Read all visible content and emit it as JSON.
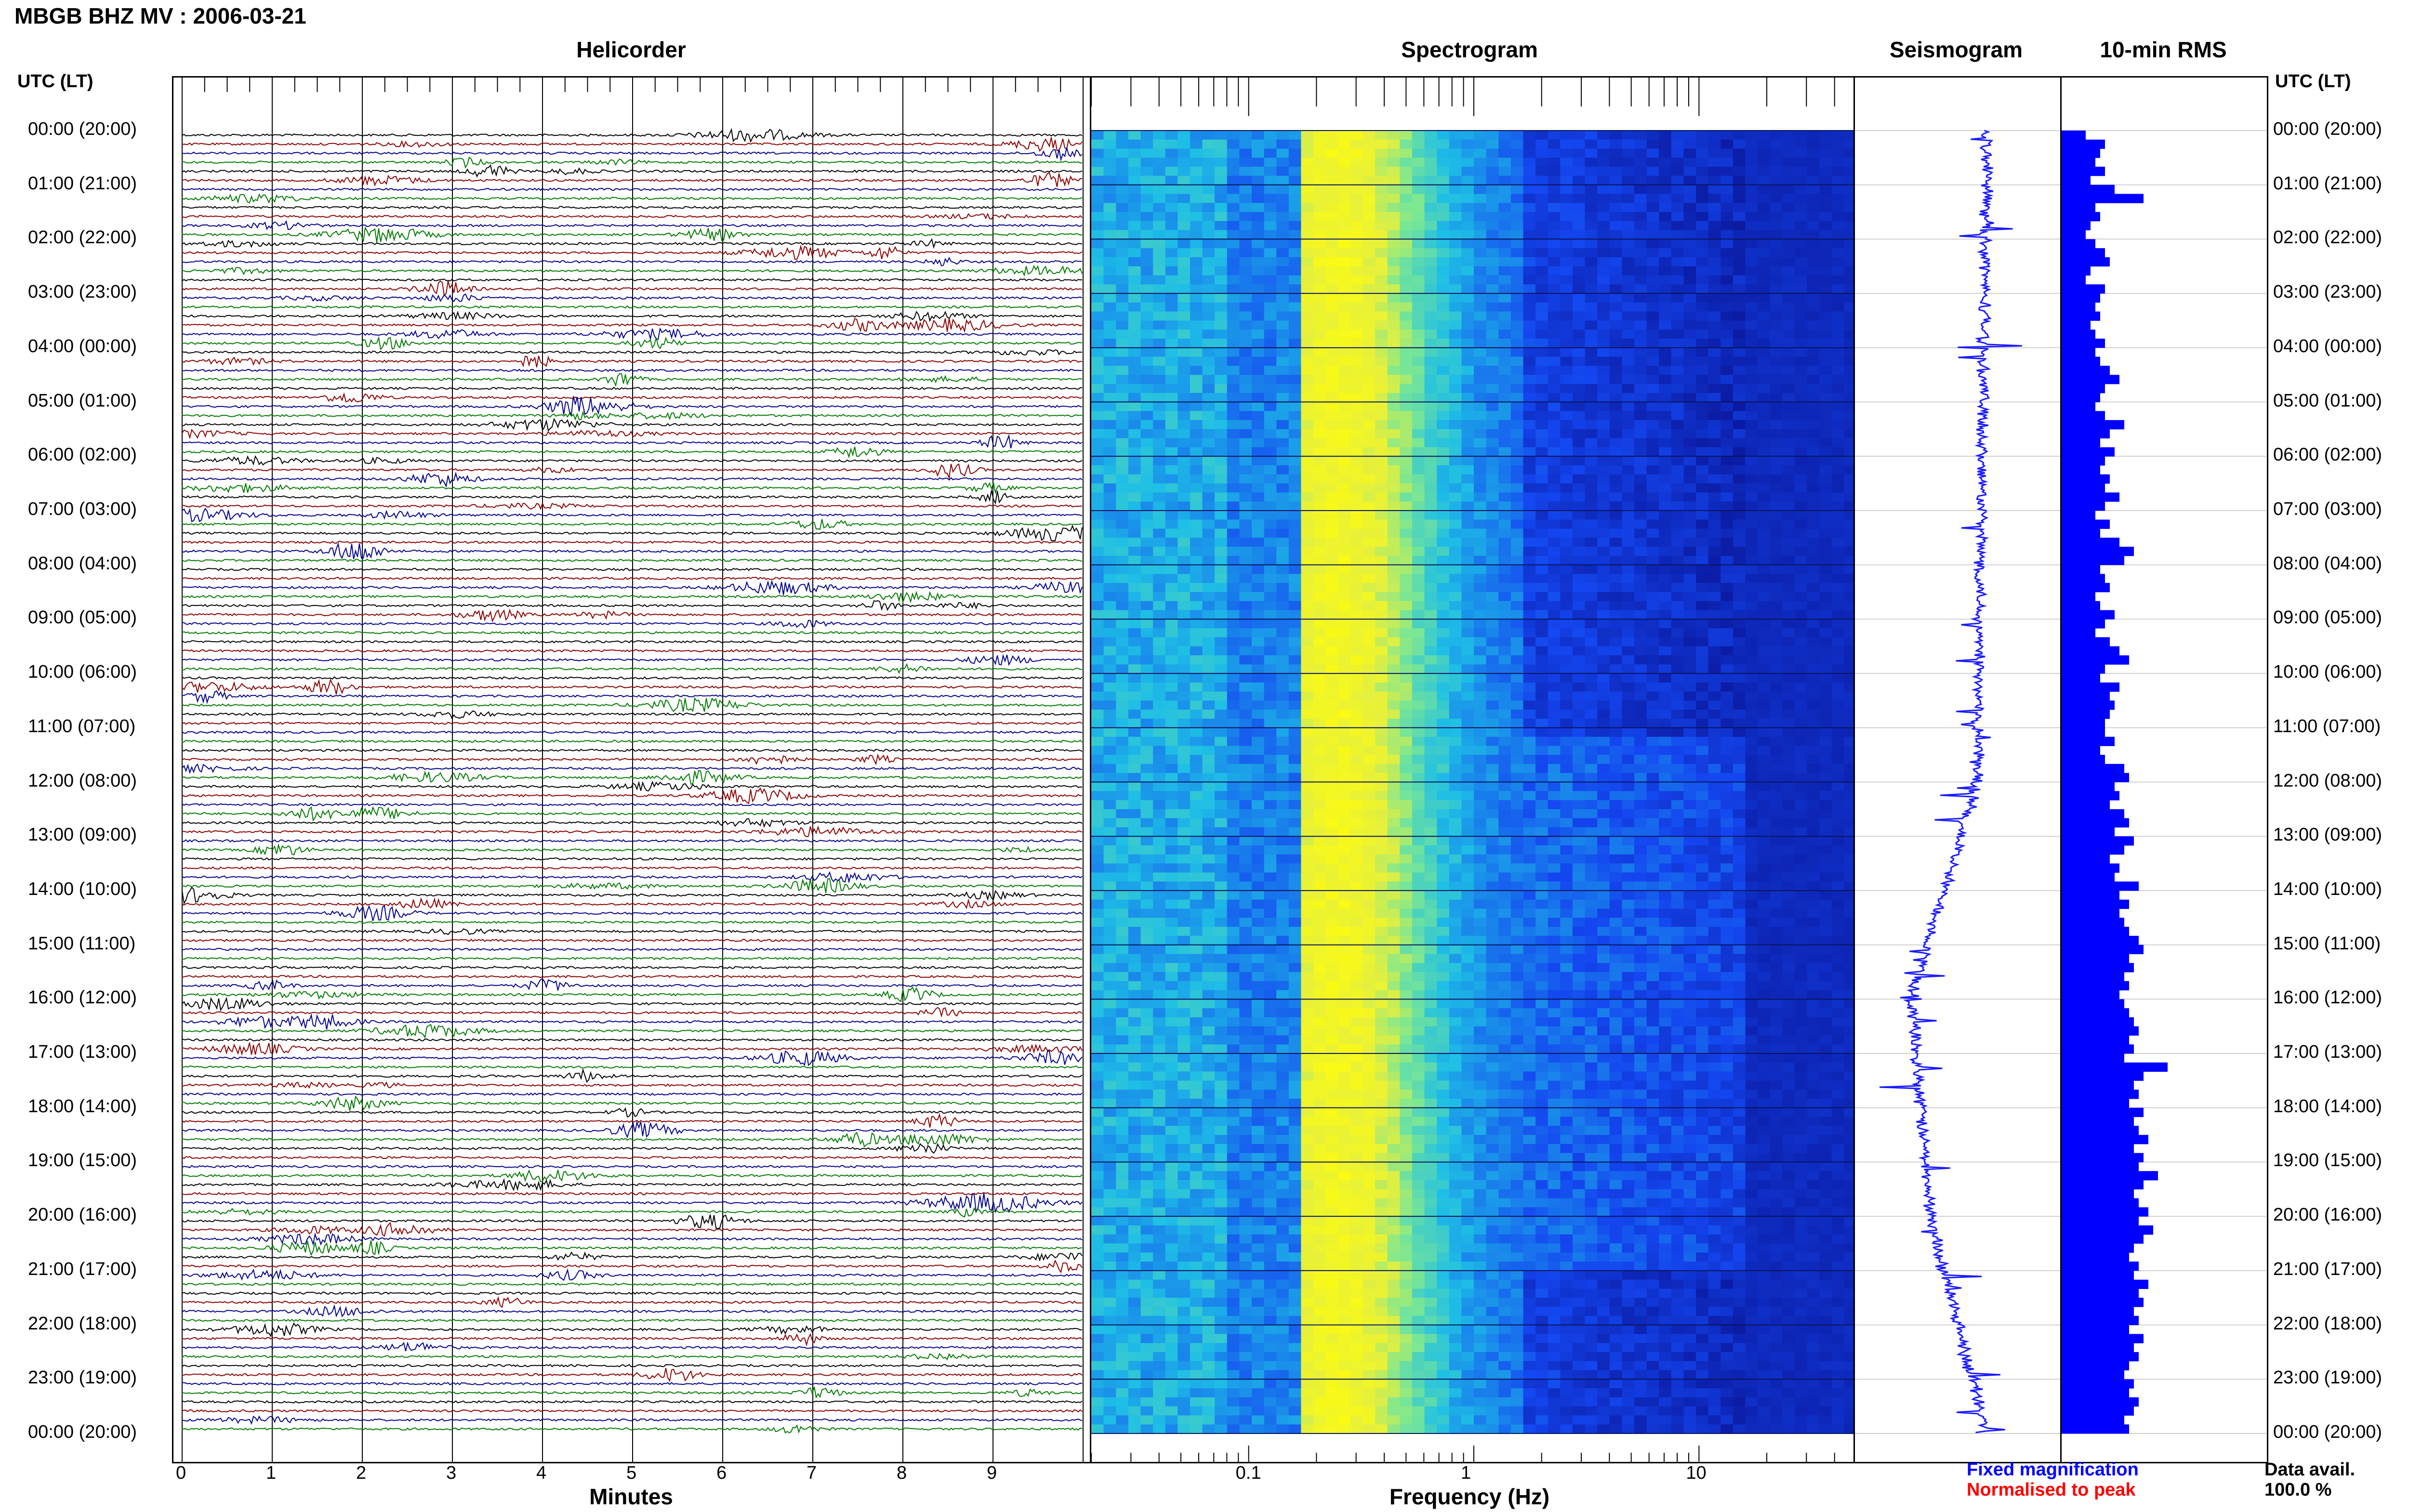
{
  "header": {
    "title": "MBGB BHZ MV : 2006-03-21",
    "utc_lt_label": "UTC (LT)"
  },
  "panels": {
    "helicorder": "Helicorder",
    "spectrogram": "Spectrogram",
    "seismogram": "Seismogram",
    "rms": "10-min RMS"
  },
  "axes": {
    "minutes_label": "Minutes",
    "frequency_label": "Frequency (Hz)",
    "minute_ticks": [
      "0",
      "1",
      "2",
      "3",
      "4",
      "5",
      "6",
      "7",
      "8",
      "9"
    ],
    "frequency_ticks": [
      "0.1",
      "1",
      "10"
    ]
  },
  "time_labels": [
    "00:00 (20:00)",
    "01:00 (21:00)",
    "02:00 (22:00)",
    "03:00 (23:00)",
    "04:00 (00:00)",
    "05:00 (01:00)",
    "06:00 (02:00)",
    "07:00 (03:00)",
    "08:00 (04:00)",
    "09:00 (05:00)",
    "10:00 (06:00)",
    "11:00 (07:00)",
    "12:00 (08:00)",
    "13:00 (09:00)",
    "14:00 (10:00)",
    "15:00 (11:00)",
    "16:00 (12:00)",
    "17:00 (13:00)",
    "18:00 (14:00)",
    "19:00 (15:00)",
    "20:00 (16:00)",
    "21:00 (17:00)",
    "22:00 (18:00)",
    "23:00 (19:00)",
    "00:00 (20:00)"
  ],
  "legend": {
    "fixed": "Fixed magnification",
    "normalised": "Normalised to peak",
    "fixed_color": "#0000ff",
    "normalised_color": "#ff0000"
  },
  "data_avail": {
    "label": "Data avail.",
    "value": "100.0 %"
  },
  "colors": {
    "trace_cycle": [
      "#000000",
      "#8b0000",
      "#00008b",
      "#007a00"
    ],
    "seismogram": "#1a1aff",
    "rms_bar": "#0000ff"
  },
  "chart_data": {
    "type": "heatmap",
    "helicorder": {
      "minutes_range": [
        0,
        10
      ],
      "traces_per_hour": 6,
      "hours": 24
    },
    "spectrogram": {
      "frequency_range_hz": [
        0.02,
        50
      ],
      "scale": "log",
      "peak_frequency_hz": 0.25
    },
    "rms_10min": {
      "values": [
        5,
        9,
        8,
        7,
        9,
        6,
        11,
        17,
        7,
        8,
        6,
        5,
        7,
        9,
        10,
        6,
        5,
        9,
        8,
        7,
        8,
        6,
        7,
        9,
        7,
        8,
        10,
        12,
        9,
        8,
        7,
        9,
        13,
        10,
        8,
        11,
        9,
        8,
        10,
        9,
        12,
        9,
        7,
        10,
        8,
        12,
        15,
        13,
        8,
        9,
        10,
        7,
        8,
        11,
        9,
        7,
        10,
        12,
        14,
        9,
        8,
        12,
        10,
        11,
        10,
        9,
        9,
        11,
        8,
        9,
        13,
        14,
        11,
        12,
        10,
        13,
        14,
        11,
        15,
        13,
        10,
        12,
        11,
        16,
        12,
        14,
        12,
        13,
        14,
        16,
        17,
        14,
        15,
        13,
        14,
        12,
        13,
        14,
        15,
        16,
        14,
        15,
        13,
        22,
        17,
        15,
        16,
        14,
        17,
        15,
        16,
        18,
        15,
        17,
        16,
        20,
        17,
        15,
        16,
        18,
        16,
        19,
        17,
        15,
        14,
        16,
        15,
        18,
        16,
        17,
        15,
        16,
        14,
        17,
        15,
        16,
        14,
        13,
        15,
        14,
        16,
        15,
        13,
        14
      ]
    }
  }
}
